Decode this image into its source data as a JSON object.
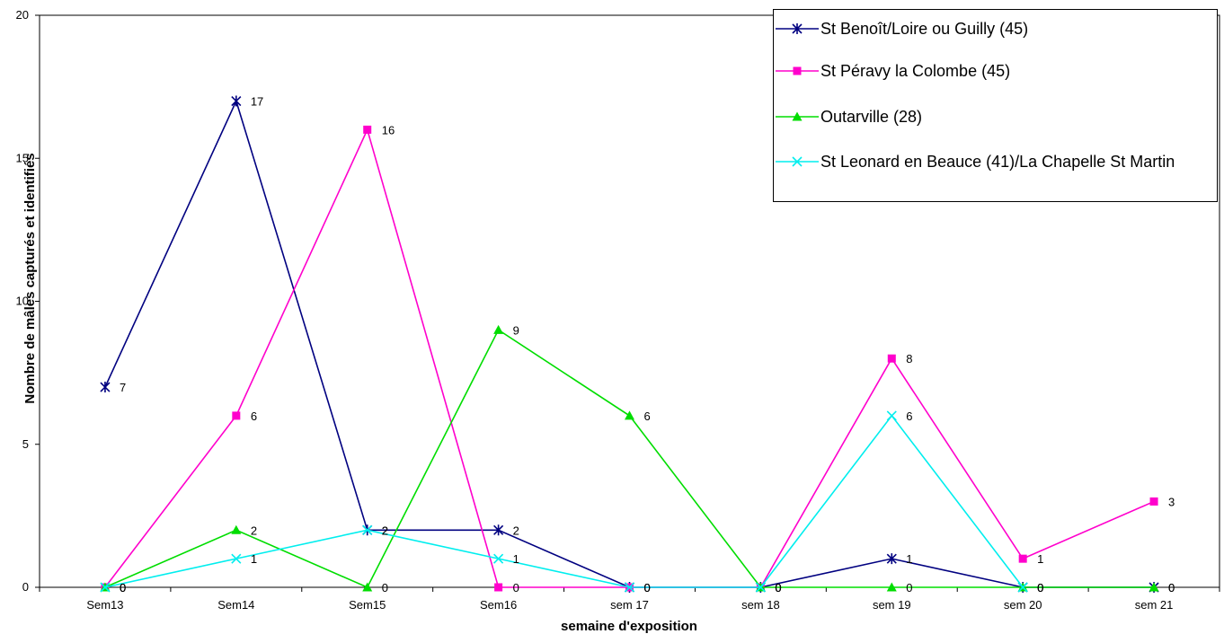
{
  "chart_data": {
    "type": "line",
    "categories": [
      "Sem13",
      "Sem14",
      "Sem15",
      "Sem16",
      "sem 17",
      "sem 18",
      "sem 19",
      "sem 20",
      "sem 21"
    ],
    "ylim": [
      0,
      20
    ],
    "yticks": [
      0,
      5,
      10,
      15,
      20
    ],
    "xlabel": "semaine d'exposition",
    "ylabel": "Nombre de mâles capturés et identifiés",
    "legend_position": "top-right",
    "grid": false,
    "series": [
      {
        "name": "St Benoît/Loire ou Guilly (45)",
        "color": "#000080",
        "marker": "star",
        "values": [
          7,
          17,
          2,
          2,
          0,
          0,
          1,
          0,
          0
        ]
      },
      {
        "name": "St Péravy la Colombe (45)",
        "color": "#ff00cc",
        "marker": "square",
        "values": [
          0,
          6,
          16,
          0,
          0,
          0,
          8,
          1,
          3
        ]
      },
      {
        "name": "Outarville (28)",
        "color": "#00dd00",
        "marker": "triangle",
        "values": [
          0,
          2,
          0,
          9,
          6,
          0,
          0,
          0,
          0
        ]
      },
      {
        "name": "St Leonard en Beauce (41)/La Chapelle St Martin",
        "color": "#00eeee",
        "marker": "x",
        "values": [
          0,
          1,
          2,
          1,
          0,
          0,
          6,
          0,
          null
        ]
      }
    ]
  }
}
